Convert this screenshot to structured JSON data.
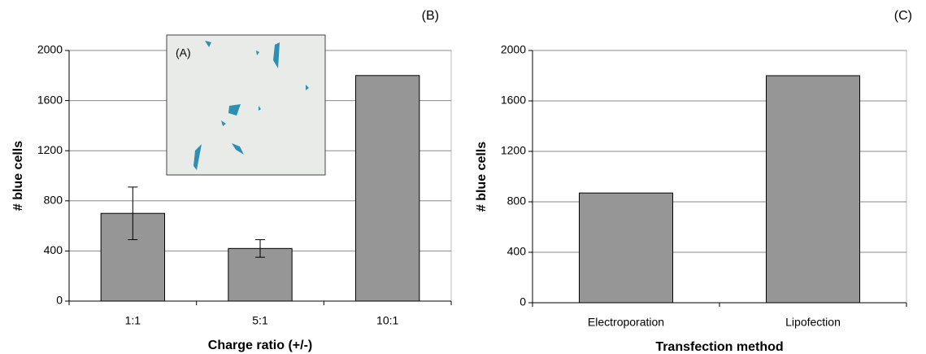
{
  "chart_data": [
    {
      "type": "bar",
      "panel_label": "(B)",
      "inset_label": "(A)",
      "x_label": "Charge ratio (+/-)",
      "y_label": "# blue cells",
      "categories": [
        "1:1",
        "5:1",
        "10:1"
      ],
      "values": [
        700,
        420,
        1800
      ],
      "errors": [
        210,
        70,
        null
      ],
      "color": "#969696",
      "ylim": [
        0,
        2000
      ],
      "yticks": [
        0,
        400,
        800,
        1200,
        1600,
        2000
      ],
      "grid": true
    },
    {
      "type": "bar",
      "panel_label": "(C)",
      "x_label": "Transfection method",
      "y_label": "# blue cells",
      "categories": [
        "Electroporation",
        "Lipofection"
      ],
      "values": [
        870,
        1800
      ],
      "color": "#969696",
      "ylim": [
        0,
        2000
      ],
      "yticks": [
        0,
        400,
        800,
        1200,
        1600,
        2000
      ],
      "grid": true
    }
  ]
}
